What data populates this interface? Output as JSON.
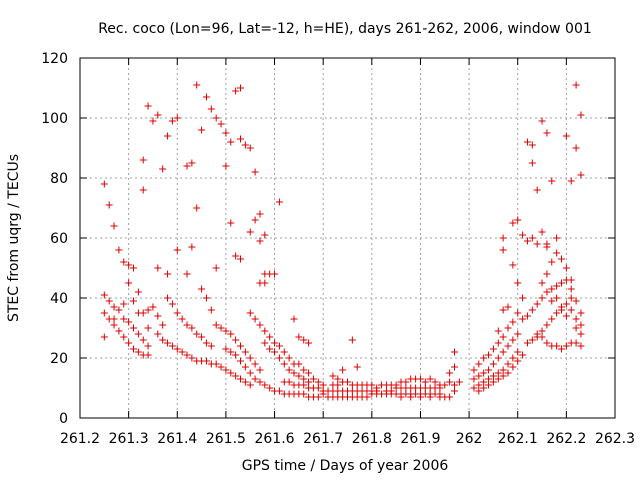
{
  "chart_data": {
    "type": "scatter",
    "title": "Rec. coco (Lon=96, Lat=-12, h=HE), days 261-262, 2006, window 001",
    "xlabel": "GPS time / Days of year 2006",
    "ylabel": "STEC from uqrg / TECUs",
    "xlim": [
      261.2,
      262.3
    ],
    "ylim": [
      0,
      120
    ],
    "xticks": [
      "261.2",
      "261.3",
      "261.4",
      "261.5",
      "261.6",
      "261.7",
      "261.8",
      "261.9",
      "262",
      "262.1",
      "262.2",
      "262.3"
    ],
    "yticks": [
      "0",
      "20",
      "40",
      "60",
      "80",
      "100",
      "120"
    ],
    "grid": true,
    "marker": "plus",
    "color": "#dd0000",
    "points": [
      [
        261.25,
        78
      ],
      [
        261.26,
        71
      ],
      [
        261.27,
        64
      ],
      [
        261.28,
        56
      ],
      [
        261.29,
        52
      ],
      [
        261.3,
        51
      ],
      [
        261.31,
        50
      ],
      [
        261.32,
        42
      ],
      [
        261.33,
        35
      ],
      [
        261.34,
        30
      ],
      [
        261.25,
        41
      ],
      [
        261.26,
        39
      ],
      [
        261.27,
        37
      ],
      [
        261.28,
        36
      ],
      [
        261.29,
        33
      ],
      [
        261.3,
        32
      ],
      [
        261.31,
        30
      ],
      [
        261.32,
        28
      ],
      [
        261.33,
        26
      ],
      [
        261.34,
        24
      ],
      [
        261.25,
        35
      ],
      [
        261.26,
        33
      ],
      [
        261.27,
        31
      ],
      [
        261.28,
        29
      ],
      [
        261.29,
        27
      ],
      [
        261.3,
        25
      ],
      [
        261.31,
        23
      ],
      [
        261.32,
        22
      ],
      [
        261.33,
        21
      ],
      [
        261.34,
        21
      ],
      [
        261.25,
        27
      ],
      [
        261.27,
        33
      ],
      [
        261.29,
        38
      ],
      [
        261.3,
        45
      ],
      [
        261.31,
        39
      ],
      [
        261.32,
        35
      ],
      [
        261.34,
        36
      ],
      [
        261.35,
        37
      ],
      [
        261.36,
        34
      ],
      [
        261.37,
        31
      ],
      [
        261.33,
        86
      ],
      [
        261.33,
        76
      ],
      [
        261.34,
        104
      ],
      [
        261.35,
        99
      ],
      [
        261.36,
        101
      ],
      [
        261.37,
        83
      ],
      [
        261.38,
        94
      ],
      [
        261.39,
        99
      ],
      [
        261.4,
        100
      ],
      [
        261.42,
        84
      ],
      [
        261.43,
        85
      ],
      [
        261.44,
        111
      ],
      [
        261.45,
        96
      ],
      [
        261.46,
        107
      ],
      [
        261.47,
        103
      ],
      [
        261.48,
        100
      ],
      [
        261.49,
        98
      ],
      [
        261.5,
        95
      ],
      [
        261.51,
        92
      ],
      [
        261.52,
        109
      ],
      [
        261.53,
        110
      ],
      [
        261.53,
        93
      ],
      [
        261.54,
        91
      ],
      [
        261.55,
        90
      ],
      [
        261.56,
        82
      ],
      [
        261.36,
        50
      ],
      [
        261.38,
        48
      ],
      [
        261.4,
        56
      ],
      [
        261.42,
        48
      ],
      [
        261.43,
        57
      ],
      [
        261.44,
        70
      ],
      [
        261.45,
        43
      ],
      [
        261.46,
        40
      ],
      [
        261.47,
        36
      ],
      [
        261.48,
        50
      ],
      [
        261.5,
        84
      ],
      [
        261.51,
        65
      ],
      [
        261.52,
        54
      ],
      [
        261.53,
        53
      ],
      [
        261.55,
        62
      ],
      [
        261.56,
        66
      ],
      [
        261.57,
        68
      ],
      [
        261.57,
        59
      ],
      [
        261.58,
        61
      ],
      [
        261.58,
        48
      ],
      [
        261.59,
        48
      ],
      [
        261.6,
        48
      ],
      [
        261.61,
        72
      ],
      [
        261.57,
        45
      ],
      [
        261.58,
        45
      ],
      [
        261.36,
        28
      ],
      [
        261.37,
        26
      ],
      [
        261.38,
        25
      ],
      [
        261.39,
        24
      ],
      [
        261.4,
        23
      ],
      [
        261.41,
        22
      ],
      [
        261.42,
        21
      ],
      [
        261.43,
        20
      ],
      [
        261.44,
        19
      ],
      [
        261.45,
        19
      ],
      [
        261.38,
        40
      ],
      [
        261.39,
        38
      ],
      [
        261.4,
        35
      ],
      [
        261.41,
        33
      ],
      [
        261.42,
        31
      ],
      [
        261.43,
        30
      ],
      [
        261.44,
        28
      ],
      [
        261.45,
        27
      ],
      [
        261.46,
        25
      ],
      [
        261.47,
        24
      ],
      [
        261.46,
        19
      ],
      [
        261.47,
        18
      ],
      [
        261.48,
        18
      ],
      [
        261.49,
        17
      ],
      [
        261.5,
        16
      ],
      [
        261.51,
        15
      ],
      [
        261.52,
        14
      ],
      [
        261.53,
        13
      ],
      [
        261.54,
        12
      ],
      [
        261.55,
        11
      ],
      [
        261.48,
        31
      ],
      [
        261.49,
        30
      ],
      [
        261.5,
        29
      ],
      [
        261.51,
        28
      ],
      [
        261.52,
        26
      ],
      [
        261.53,
        24
      ],
      [
        261.54,
        22
      ],
      [
        261.55,
        20
      ],
      [
        261.56,
        18
      ],
      [
        261.57,
        16
      ],
      [
        261.5,
        23
      ],
      [
        261.51,
        22
      ],
      [
        261.52,
        21
      ],
      [
        261.53,
        19
      ],
      [
        261.54,
        17
      ],
      [
        261.55,
        15
      ],
      [
        261.56,
        13
      ],
      [
        261.57,
        12
      ],
      [
        261.58,
        11
      ],
      [
        261.59,
        10
      ],
      [
        261.55,
        35
      ],
      [
        261.56,
        33
      ],
      [
        261.57,
        31
      ],
      [
        261.58,
        29
      ],
      [
        261.59,
        27
      ],
      [
        261.6,
        25
      ],
      [
        261.61,
        24
      ],
      [
        261.62,
        22
      ],
      [
        261.63,
        20
      ],
      [
        261.64,
        18
      ],
      [
        261.58,
        25
      ],
      [
        261.59,
        23
      ],
      [
        261.6,
        22
      ],
      [
        261.61,
        20
      ],
      [
        261.62,
        18
      ],
      [
        261.63,
        16
      ],
      [
        261.64,
        15
      ],
      [
        261.65,
        14
      ],
      [
        261.66,
        13
      ],
      [
        261.67,
        12
      ],
      [
        261.6,
        9
      ],
      [
        261.61,
        9
      ],
      [
        261.62,
        8
      ],
      [
        261.63,
        8
      ],
      [
        261.64,
        8
      ],
      [
        261.65,
        8
      ],
      [
        261.66,
        8
      ],
      [
        261.67,
        7
      ],
      [
        261.68,
        7
      ],
      [
        261.69,
        7
      ],
      [
        261.62,
        12
      ],
      [
        261.63,
        12
      ],
      [
        261.64,
        11
      ],
      [
        261.65,
        11
      ],
      [
        261.66,
        11
      ],
      [
        261.67,
        10
      ],
      [
        261.68,
        10
      ],
      [
        261.69,
        10
      ],
      [
        261.7,
        9
      ],
      [
        261.71,
        9
      ],
      [
        261.64,
        33
      ],
      [
        261.65,
        27
      ],
      [
        261.66,
        26
      ],
      [
        261.67,
        25
      ],
      [
        261.65,
        18
      ],
      [
        261.66,
        16
      ],
      [
        261.67,
        15
      ],
      [
        261.68,
        13
      ],
      [
        261.69,
        12
      ],
      [
        261.7,
        11
      ],
      [
        261.7,
        8
      ],
      [
        261.71,
        7
      ],
      [
        261.72,
        7
      ],
      [
        261.73,
        7
      ],
      [
        261.74,
        7
      ],
      [
        261.75,
        7
      ],
      [
        261.76,
        7
      ],
      [
        261.77,
        7
      ],
      [
        261.78,
        7
      ],
      [
        261.79,
        7
      ],
      [
        261.72,
        11
      ],
      [
        261.73,
        11
      ],
      [
        261.74,
        12
      ],
      [
        261.75,
        12
      ],
      [
        261.76,
        11
      ],
      [
        261.77,
        11
      ],
      [
        261.78,
        11
      ],
      [
        261.79,
        11
      ],
      [
        261.8,
        11
      ],
      [
        261.81,
        10
      ],
      [
        261.72,
        9
      ],
      [
        261.73,
        9
      ],
      [
        261.74,
        9
      ],
      [
        261.75,
        9
      ],
      [
        261.76,
        9
      ],
      [
        261.77,
        9
      ],
      [
        261.78,
        9
      ],
      [
        261.79,
        9
      ],
      [
        261.8,
        9
      ],
      [
        261.81,
        9
      ],
      [
        261.74,
        16
      ],
      [
        261.76,
        26
      ],
      [
        261.77,
        17
      ],
      [
        261.72,
        14
      ],
      [
        261.73,
        13
      ],
      [
        261.8,
        8
      ],
      [
        261.81,
        8
      ],
      [
        261.82,
        8
      ],
      [
        261.83,
        8
      ],
      [
        261.84,
        8
      ],
      [
        261.82,
        11
      ],
      [
        261.83,
        11
      ],
      [
        261.84,
        11
      ],
      [
        261.85,
        11
      ],
      [
        261.86,
        12
      ],
      [
        261.87,
        12
      ],
      [
        261.88,
        13
      ],
      [
        261.89,
        13
      ],
      [
        261.9,
        13
      ],
      [
        261.91,
        12
      ],
      [
        261.85,
        8
      ],
      [
        261.86,
        8
      ],
      [
        261.87,
        8
      ],
      [
        261.88,
        8
      ],
      [
        261.89,
        8
      ],
      [
        261.9,
        8
      ],
      [
        261.91,
        8
      ],
      [
        261.92,
        8
      ],
      [
        261.93,
        8
      ],
      [
        261.94,
        8
      ],
      [
        261.85,
        10
      ],
      [
        261.86,
        10
      ],
      [
        261.87,
        10
      ],
      [
        261.88,
        10
      ],
      [
        261.89,
        10
      ],
      [
        261.9,
        10
      ],
      [
        261.91,
        10
      ],
      [
        261.92,
        10
      ],
      [
        261.93,
        10
      ],
      [
        261.94,
        10
      ],
      [
        261.92,
        13
      ],
      [
        261.93,
        12
      ],
      [
        261.94,
        11
      ],
      [
        261.95,
        11
      ],
      [
        261.96,
        12
      ],
      [
        261.97,
        22
      ],
      [
        261.97,
        17
      ],
      [
        261.96,
        15
      ],
      [
        261.95,
        7
      ],
      [
        261.96,
        7
      ],
      [
        261.97,
        9
      ],
      [
        261.97,
        11
      ],
      [
        261.98,
        12
      ],
      [
        261.86,
        7
      ],
      [
        261.88,
        7
      ],
      [
        261.9,
        7
      ],
      [
        261.92,
        7
      ],
      [
        261.94,
        7
      ],
      [
        261.84,
        9
      ],
      [
        261.83,
        9
      ],
      [
        262.01,
        10
      ],
      [
        262.02,
        11
      ],
      [
        262.03,
        12
      ],
      [
        262.04,
        13
      ],
      [
        262.05,
        14
      ],
      [
        262.06,
        15
      ],
      [
        262.07,
        16
      ],
      [
        262.08,
        18
      ],
      [
        262.09,
        20
      ],
      [
        262.1,
        22
      ],
      [
        262.01,
        13
      ],
      [
        262.02,
        14
      ],
      [
        262.03,
        15
      ],
      [
        262.04,
        16
      ],
      [
        262.05,
        18
      ],
      [
        262.06,
        20
      ],
      [
        262.07,
        22
      ],
      [
        262.08,
        24
      ],
      [
        262.09,
        26
      ],
      [
        262.1,
        28
      ],
      [
        262.01,
        16
      ],
      [
        262.02,
        18
      ],
      [
        262.03,
        20
      ],
      [
        262.04,
        21
      ],
      [
        262.05,
        23
      ],
      [
        262.06,
        25
      ],
      [
        262.07,
        27
      ],
      [
        262.08,
        30
      ],
      [
        262.09,
        32
      ],
      [
        262.1,
        35
      ],
      [
        262.02,
        9
      ],
      [
        262.03,
        10
      ],
      [
        262.04,
        11
      ],
      [
        262.05,
        12
      ],
      [
        262.06,
        13
      ],
      [
        262.07,
        14
      ],
      [
        262.08,
        15
      ],
      [
        262.09,
        17
      ],
      [
        262.1,
        19
      ],
      [
        262.11,
        21
      ],
      [
        262.06,
        29
      ],
      [
        262.07,
        36
      ],
      [
        262.08,
        37
      ],
      [
        262.07,
        56
      ],
      [
        262.07,
        60
      ],
      [
        262.09,
        51
      ],
      [
        262.09,
        65
      ],
      [
        262.1,
        66
      ],
      [
        262.1,
        45
      ],
      [
        262.11,
        40
      ],
      [
        262.11,
        61
      ],
      [
        262.12,
        92
      ],
      [
        262.13,
        91
      ],
      [
        262.13,
        85
      ],
      [
        262.14,
        76
      ],
      [
        262.15,
        99
      ],
      [
        262.16,
        95
      ],
      [
        262.16,
        58
      ],
      [
        262.17,
        79
      ],
      [
        262.18,
        60
      ],
      [
        262.12,
        59
      ],
      [
        262.13,
        60
      ],
      [
        262.14,
        58
      ],
      [
        262.15,
        62
      ],
      [
        262.16,
        57
      ],
      [
        262.17,
        52
      ],
      [
        262.18,
        55
      ],
      [
        262.19,
        53
      ],
      [
        262.2,
        50
      ],
      [
        262.21,
        46
      ],
      [
        262.11,
        33
      ],
      [
        262.12,
        34
      ],
      [
        262.13,
        36
      ],
      [
        262.14,
        38
      ],
      [
        262.15,
        40
      ],
      [
        262.16,
        42
      ],
      [
        262.17,
        43
      ],
      [
        262.18,
        44
      ],
      [
        262.19,
        45
      ],
      [
        262.2,
        46
      ],
      [
        262.12,
        25
      ],
      [
        262.13,
        26
      ],
      [
        262.14,
        27
      ],
      [
        262.15,
        29
      ],
      [
        262.16,
        31
      ],
      [
        262.17,
        33
      ],
      [
        262.18,
        35
      ],
      [
        262.19,
        37
      ],
      [
        262.2,
        38
      ],
      [
        262.21,
        40
      ],
      [
        262.14,
        28
      ],
      [
        262.15,
        27
      ],
      [
        262.16,
        25
      ],
      [
        262.17,
        24
      ],
      [
        262.18,
        24
      ],
      [
        262.19,
        23
      ],
      [
        262.2,
        24
      ],
      [
        262.21,
        25
      ],
      [
        262.22,
        25
      ],
      [
        262.23,
        24
      ],
      [
        262.2,
        94
      ],
      [
        262.21,
        79
      ],
      [
        262.22,
        111
      ],
      [
        262.22,
        90
      ],
      [
        262.23,
        101
      ],
      [
        262.23,
        81
      ],
      [
        262.21,
        43
      ],
      [
        262.22,
        39
      ],
      [
        262.23,
        35
      ],
      [
        262.23,
        31
      ],
      [
        262.15,
        45
      ],
      [
        262.16,
        48
      ],
      [
        262.17,
        39
      ],
      [
        262.18,
        40
      ],
      [
        262.19,
        36
      ],
      [
        262.2,
        34
      ],
      [
        262.21,
        36
      ],
      [
        262.22,
        33
      ],
      [
        262.23,
        28
      ],
      [
        262.22,
        30
      ]
    ]
  }
}
